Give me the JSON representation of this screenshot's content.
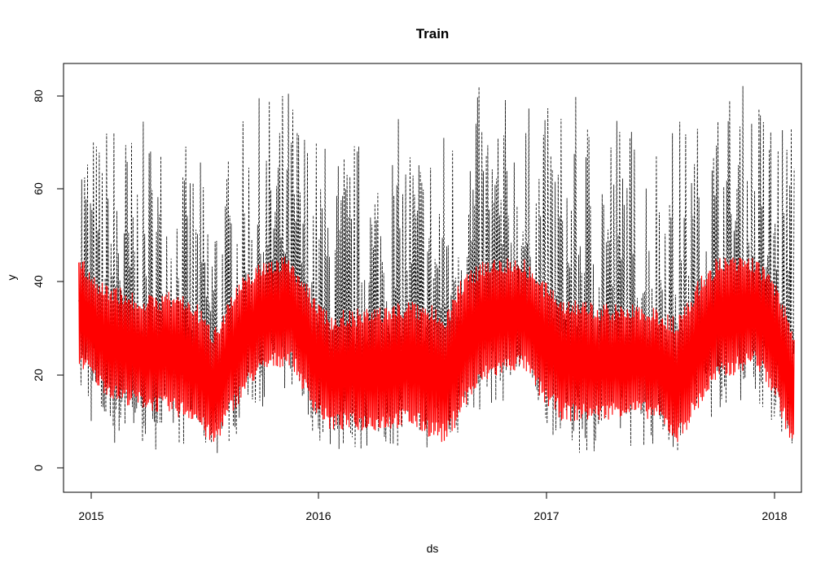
{
  "chart_data": {
    "type": "line",
    "title": "Train",
    "xlabel": "ds",
    "ylabel": "y",
    "x_ticks": [
      "2015",
      "2016",
      "2017",
      "2018"
    ],
    "y_ticks": [
      "0",
      "20",
      "40",
      "60",
      "80"
    ],
    "xlim": [
      "2014-12-08",
      "2018-02-12"
    ],
    "ylim": [
      -5,
      86
    ],
    "grid": false,
    "legend": "none",
    "series": [
      {
        "line_style": "dashed",
        "color": "#000000",
        "x": [
          "2015-01-01",
          "2015-02-01",
          "2015-03-01",
          "2015-04-01",
          "2015-05-01",
          "2015-06-01",
          "2015-07-01",
          "2015-08-01",
          "2015-09-01",
          "2015-10-01",
          "2015-11-01",
          "2015-12-01",
          "2016-01-01",
          "2016-02-01",
          "2016-03-01",
          "2016-04-01",
          "2016-05-01",
          "2016-06-01",
          "2016-07-01",
          "2016-08-01",
          "2016-09-01",
          "2016-10-01",
          "2016-11-01",
          "2016-12-01",
          "2017-01-01",
          "2017-02-01",
          "2017-03-01",
          "2017-04-01",
          "2017-05-01",
          "2017-06-01",
          "2017-07-01",
          "2017-08-01",
          "2017-09-01",
          "2017-10-01",
          "2017-11-01",
          "2017-12-01",
          "2018-01-01",
          "2018-02-01"
        ],
        "y_low": [
          14,
          6,
          4,
          4,
          4,
          5,
          4,
          2,
          6,
          12,
          14,
          16,
          8,
          3,
          3,
          4,
          4,
          5,
          4,
          4,
          8,
          13,
          14,
          16,
          10,
          4,
          3,
          4,
          4,
          5,
          4,
          3,
          6,
          12,
          14,
          15,
          8,
          4
        ],
        "y_high": [
          80,
          73,
          79,
          72,
          77,
          70,
          68,
          62,
          70,
          78,
          81,
          83,
          74,
          70,
          72,
          71,
          73,
          76,
          73,
          75,
          80,
          82,
          80,
          78,
          77,
          80,
          79,
          79,
          80,
          72,
          75,
          76,
          75,
          80,
          83,
          82,
          80,
          75
        ]
      },
      {
        "line_style": "solid",
        "color": "#ff0000",
        "x": [
          "2015-01-01",
          "2015-02-01",
          "2015-03-01",
          "2015-04-01",
          "2015-05-01",
          "2015-06-01",
          "2015-07-01",
          "2015-08-01",
          "2015-09-01",
          "2015-10-01",
          "2015-11-01",
          "2015-12-01",
          "2016-01-01",
          "2016-02-01",
          "2016-03-01",
          "2016-04-01",
          "2016-05-01",
          "2016-06-01",
          "2016-07-01",
          "2016-08-01",
          "2016-09-01",
          "2016-10-01",
          "2016-11-01",
          "2016-12-01",
          "2017-01-01",
          "2017-02-01",
          "2017-03-01",
          "2017-04-01",
          "2017-05-01",
          "2017-06-01",
          "2017-07-01",
          "2017-08-01",
          "2017-09-01",
          "2017-10-01",
          "2017-11-01",
          "2017-12-01",
          "2018-01-01",
          "2018-02-01"
        ],
        "y_low": [
          22,
          17,
          14,
          13,
          12,
          11,
          10,
          4,
          12,
          18,
          21,
          22,
          13,
          8,
          8,
          8,
          8,
          9,
          7,
          5,
          13,
          18,
          20,
          21,
          14,
          10,
          10,
          10,
          11,
          11,
          10,
          5,
          12,
          18,
          20,
          22,
          15,
          3
        ],
        "y_high": [
          46,
          40,
          39,
          37,
          37,
          38,
          36,
          30,
          38,
          43,
          45,
          45,
          38,
          33,
          34,
          34,
          35,
          36,
          35,
          34,
          42,
          45,
          45,
          45,
          40,
          37,
          36,
          35,
          35,
          35,
          34,
          32,
          40,
          45,
          45,
          45,
          40,
          30
        ]
      }
    ]
  }
}
